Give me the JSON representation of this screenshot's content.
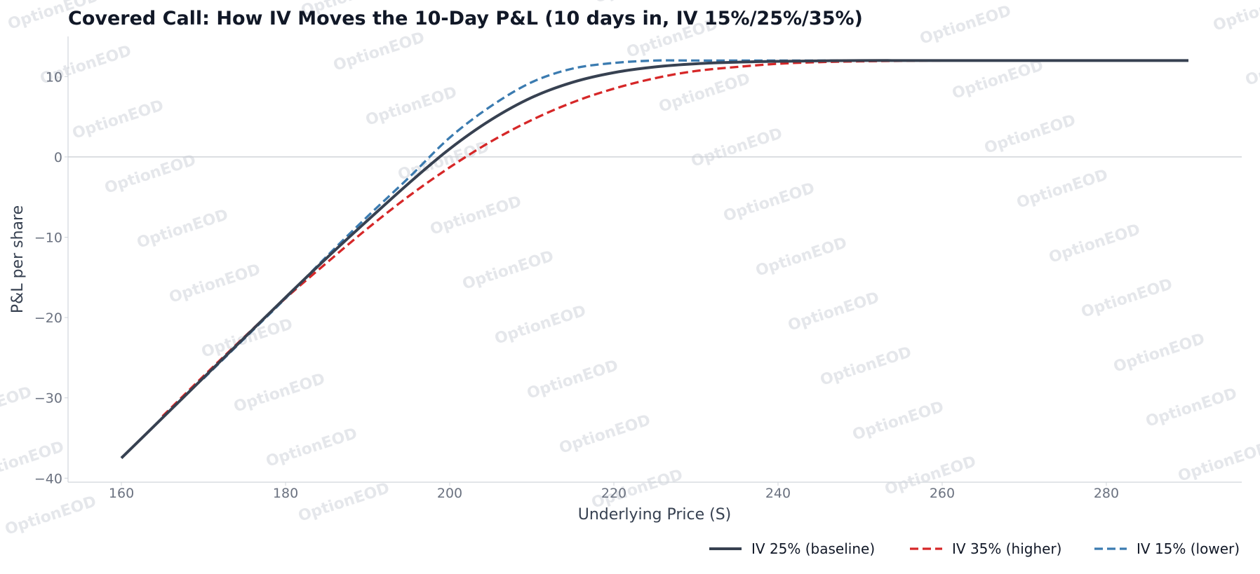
{
  "chart_data": {
    "type": "line",
    "title": "Covered Call: How IV Moves the 10-Day P&L (10 days in, IV 15%/25%/35%)",
    "xlabel": "Underlying Price (S)",
    "ylabel": "P&L per share",
    "xlim": [
      153.5,
      296.5
    ],
    "ylim": [
      -40.5,
      15
    ],
    "xticks": [
      160,
      180,
      200,
      220,
      240,
      260,
      280
    ],
    "yticks": [
      -40,
      -30,
      -20,
      -10,
      0,
      10
    ],
    "xtick_labels": [
      "160",
      "180",
      "200",
      "220",
      "240",
      "260",
      "280"
    ],
    "ytick_labels": [
      "−40",
      "−30",
      "−20",
      "−10",
      "0",
      "10"
    ],
    "hline": 0,
    "grid": false,
    "legend_position": "bottom-right",
    "series": [
      {
        "name": "IV 25% (baseline)",
        "color": "#374151",
        "style": "solid",
        "x": [
          160,
          165,
          170,
          175,
          180,
          185,
          190,
          195,
          200,
          205,
          210,
          215,
          220,
          225,
          230,
          235,
          240,
          250,
          260,
          270,
          280,
          290
        ],
        "y": [
          -37.5,
          -32.5,
          -27.5,
          -22.5,
          -17.5,
          -12.6,
          -7.9,
          -3.3,
          1.0,
          4.6,
          7.4,
          9.3,
          10.5,
          11.2,
          11.6,
          11.8,
          11.9,
          12.0,
          12.0,
          12.0,
          12.0,
          12.0
        ]
      },
      {
        "name": "IV 35% (higher)",
        "color": "#d62728",
        "style": "dashed",
        "x": [
          165,
          170,
          175,
          180,
          185,
          190,
          195,
          200,
          205,
          210,
          215,
          220,
          225,
          230,
          235,
          240,
          245,
          250,
          260,
          270,
          280,
          290
        ],
        "y": [
          -32.3,
          -27.3,
          -22.4,
          -17.6,
          -13.2,
          -8.9,
          -4.9,
          -1.3,
          1.9,
          4.6,
          6.8,
          8.5,
          9.8,
          10.7,
          11.2,
          11.6,
          11.8,
          11.9,
          12.0,
          12.0,
          12.0,
          12.0
        ]
      },
      {
        "name": "IV 15% (lower)",
        "color": "#3b7bb0",
        "style": "dashed",
        "x": [
          170,
          175,
          180,
          185,
          190,
          195,
          200,
          205,
          210,
          215,
          220,
          225,
          230,
          235,
          240,
          250,
          260,
          270,
          280,
          290
        ],
        "y": [
          -27.6,
          -22.6,
          -17.6,
          -12.4,
          -7.4,
          -2.6,
          2.4,
          6.3,
          9.3,
          11.0,
          11.7,
          12.0,
          12.0,
          12.0,
          12.0,
          12.0,
          12.0,
          12.0,
          12.0,
          12.0
        ]
      }
    ]
  },
  "watermark": "OptionEOD"
}
